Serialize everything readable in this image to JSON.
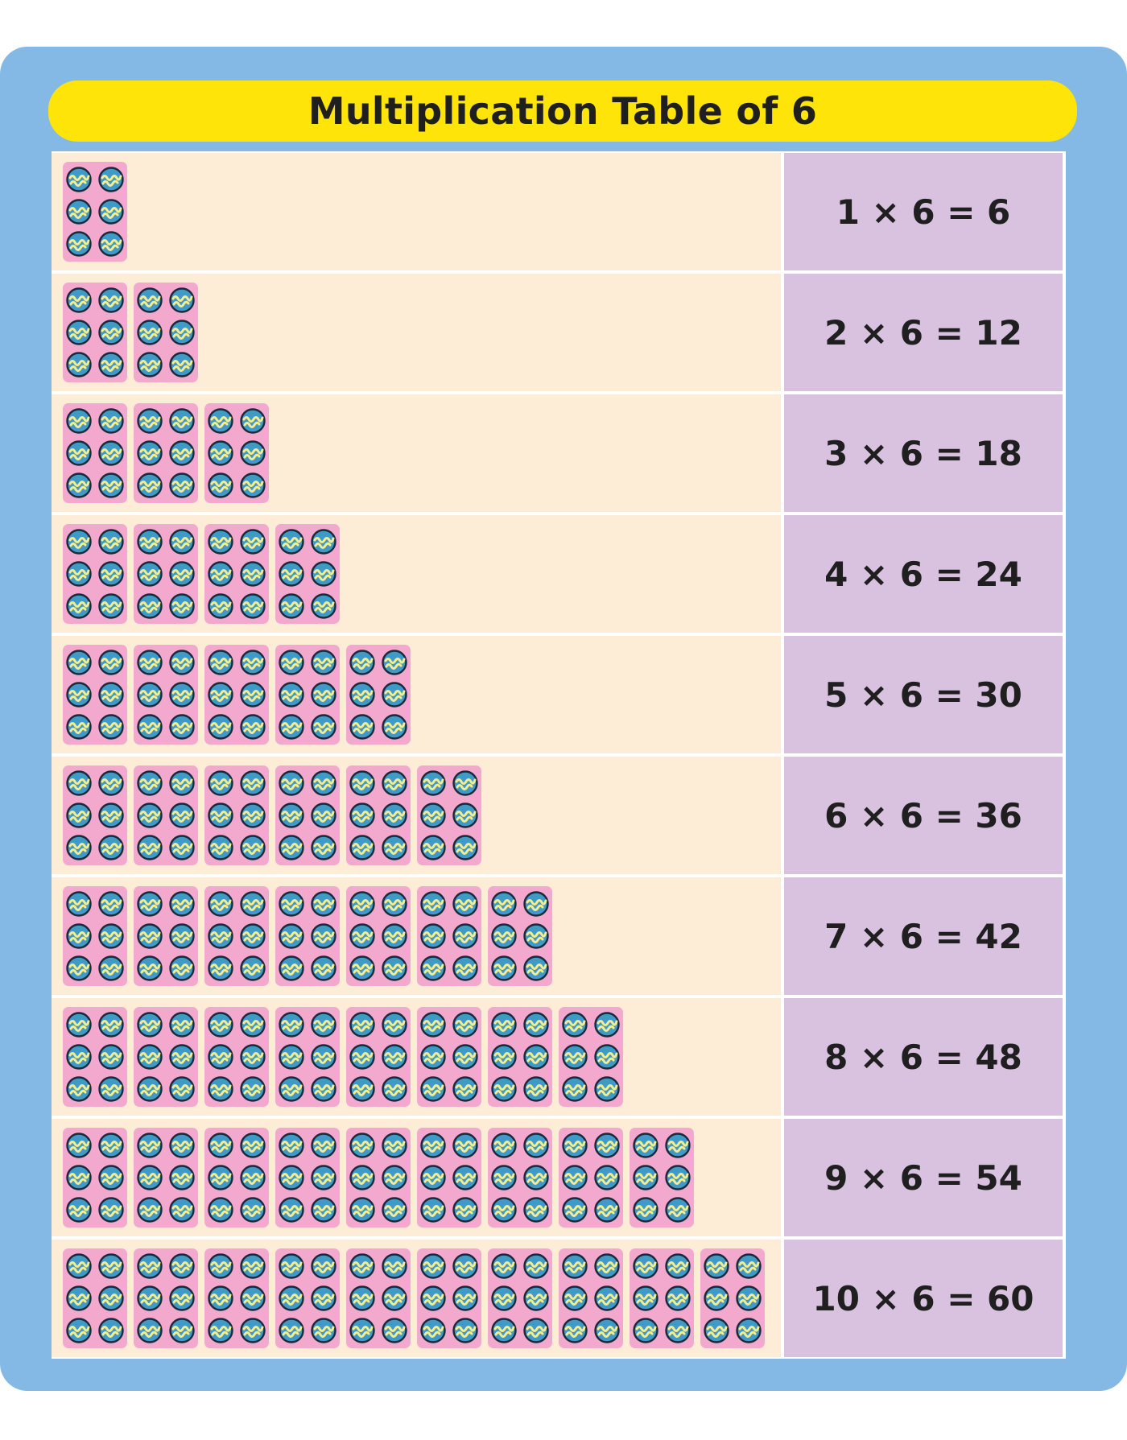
{
  "title": "Multiplication Table of 6",
  "colors": {
    "frame": "#85b9e5",
    "title_bar": "#ffe40a",
    "groups_background": "#fdecd6",
    "equation_background": "#d8c2df",
    "tile": "#f3a9cd",
    "ball_fill": "#3f9ac8",
    "ball_stripe": "#f7ec8c",
    "ball_outline": "#1b2a3a"
  },
  "icon": "striped-ball-icon",
  "balls_per_group": 6,
  "rows": [
    {
      "groups": 1,
      "equation": "1 × 6 = 6"
    },
    {
      "groups": 2,
      "equation": "2 × 6 = 12"
    },
    {
      "groups": 3,
      "equation": "3 × 6 = 18"
    },
    {
      "groups": 4,
      "equation": "4 × 6 = 24"
    },
    {
      "groups": 5,
      "equation": "5 × 6 = 30"
    },
    {
      "groups": 6,
      "equation": "6 × 6 = 36"
    },
    {
      "groups": 7,
      "equation": "7 × 6 = 42"
    },
    {
      "groups": 8,
      "equation": "8 × 6 = 48"
    },
    {
      "groups": 9,
      "equation": "9 × 6 = 54"
    },
    {
      "groups": 10,
      "equation": "10 × 6 = 60"
    }
  ]
}
